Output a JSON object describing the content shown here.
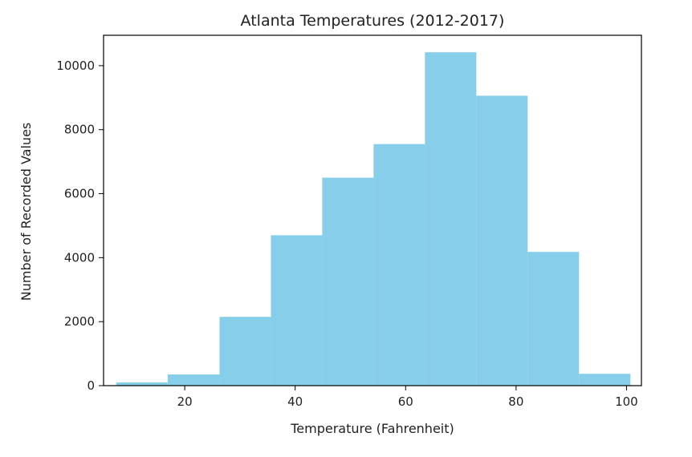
{
  "chart_data": {
    "type": "bar",
    "title": "Atlanta Temperatures (2012-2017)",
    "xlabel": "Temperature (Fahrenheit)",
    "ylabel": "Number of Recorded Values",
    "xlim": [
      5.3,
      102.7
    ],
    "ylim": [
      0,
      10950
    ],
    "x_ticks": [
      20,
      40,
      60,
      80,
      100
    ],
    "y_ticks": [
      0,
      2000,
      4000,
      6000,
      8000,
      10000
    ],
    "grid": false,
    "bar_color": "#87ceeb",
    "bins": [
      {
        "start": 7.6,
        "end": 16.9,
        "value": 100
      },
      {
        "start": 16.9,
        "end": 26.3,
        "value": 350
      },
      {
        "start": 26.3,
        "end": 35.6,
        "value": 2150
      },
      {
        "start": 35.6,
        "end": 44.9,
        "value": 4700
      },
      {
        "start": 44.9,
        "end": 54.2,
        "value": 6500
      },
      {
        "start": 54.2,
        "end": 63.5,
        "value": 7550
      },
      {
        "start": 63.5,
        "end": 72.8,
        "value": 10420
      },
      {
        "start": 72.8,
        "end": 82.1,
        "value": 9060
      },
      {
        "start": 82.1,
        "end": 91.4,
        "value": 4180
      },
      {
        "start": 91.4,
        "end": 100.7,
        "value": 370
      }
    ]
  }
}
